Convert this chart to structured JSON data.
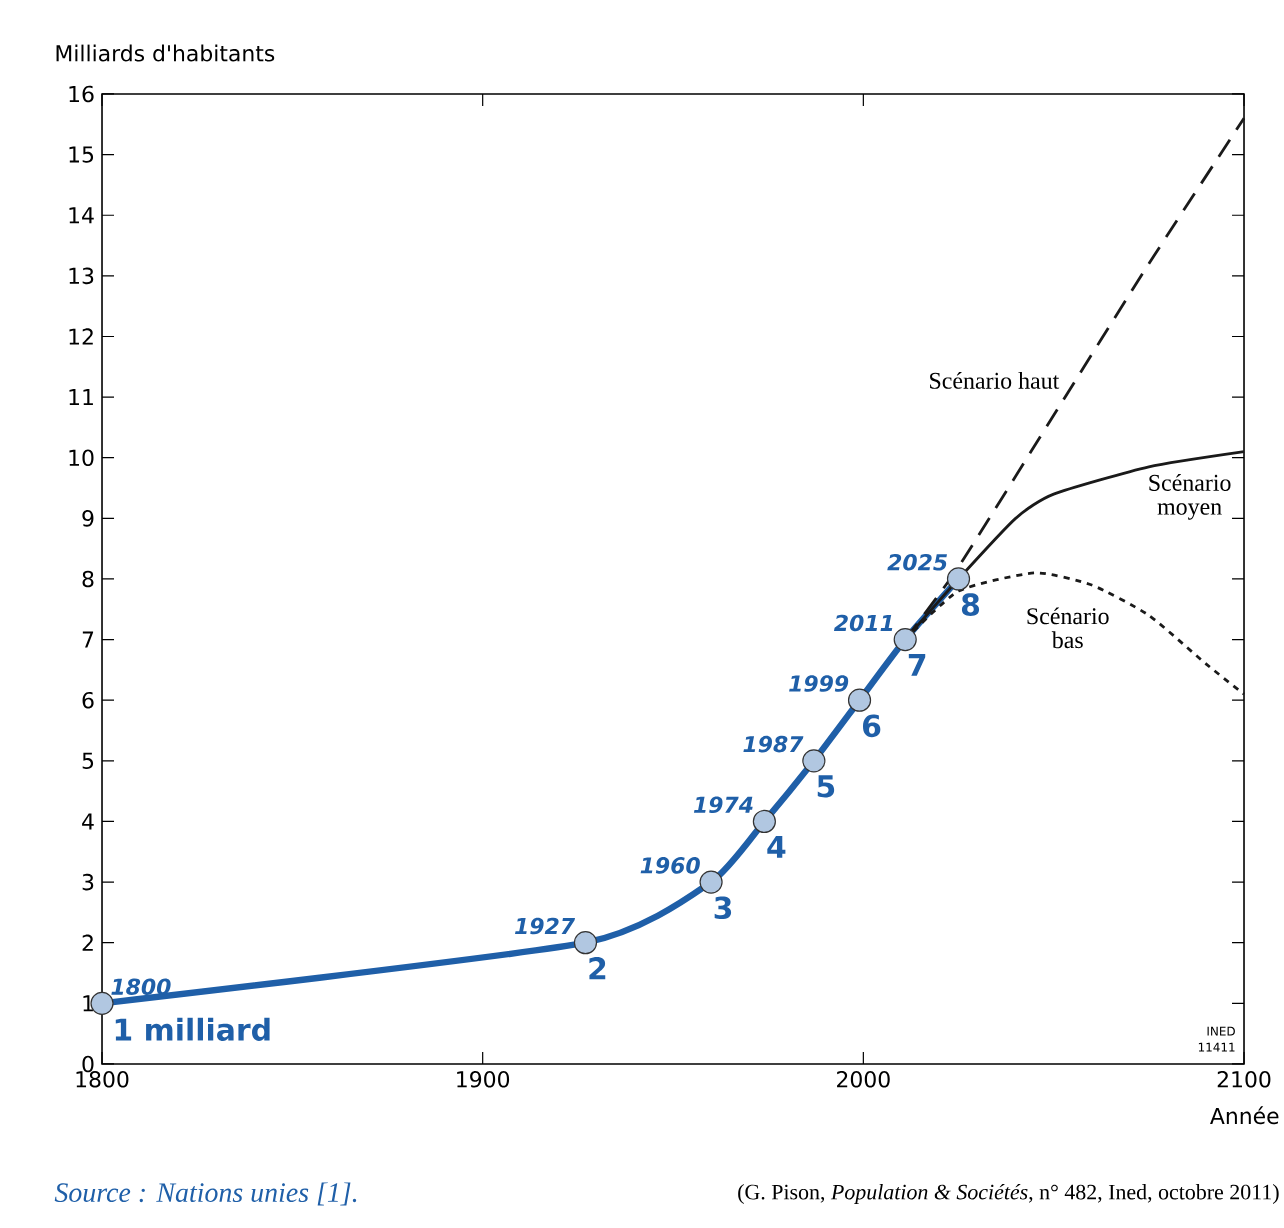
{
  "chart_data": {
    "type": "line",
    "ylabel": "Milliards d'habitants",
    "xlabel": "Année",
    "xlim": [
      1800,
      2100
    ],
    "xticks": [
      1800,
      1900,
      2000,
      2100
    ],
    "ylim": [
      0,
      16
    ],
    "yticks": [
      0,
      1,
      2,
      3,
      4,
      5,
      6,
      7,
      8,
      9,
      10,
      11,
      12,
      13,
      14,
      15,
      16
    ],
    "series": [
      {
        "color": "#1f5fa8",
        "marker": "circle",
        "line_style": "solid",
        "x": [
          1800,
          1927,
          1960,
          1974,
          1987,
          1999,
          2011,
          2025
        ],
        "values": [
          1,
          2,
          3,
          4,
          5,
          6,
          7,
          8
        ]
      },
      {
        "name": "Scénario haut",
        "color": "#1a1a1a",
        "marker": "none",
        "line_style": "dashed",
        "x": [
          2011,
          2025,
          2050,
          2075,
          2100
        ],
        "values": [
          7,
          8.2,
          10.7,
          13.2,
          15.6
        ]
      },
      {
        "name": "Scénario moyen",
        "color": "#1a1a1a",
        "marker": "none",
        "line_style": "solid",
        "x": [
          2011,
          2025,
          2040,
          2050,
          2075,
          2100
        ],
        "values": [
          7,
          8.0,
          9.0,
          9.4,
          9.85,
          10.1
        ]
      },
      {
        "name": "Scénario bas",
        "color": "#1a1a1a",
        "marker": "none",
        "line_style": "dotted",
        "x": [
          2011,
          2025,
          2045,
          2060,
          2075,
          2090,
          2100
        ],
        "values": [
          7,
          7.8,
          8.1,
          7.9,
          7.4,
          6.6,
          6.1
        ]
      }
    ],
    "annotations": [
      {
        "text": "1800",
        "x": 1800,
        "y": 1
      },
      {
        "text": "1 milliard",
        "x": 1800,
        "y": 1
      },
      {
        "text": "1927",
        "x": 1927,
        "y": 2
      },
      {
        "text": "2",
        "x": 1927,
        "y": 2
      },
      {
        "text": "1960",
        "x": 1960,
        "y": 3
      },
      {
        "text": "3",
        "x": 1960,
        "y": 3
      },
      {
        "text": "1974",
        "x": 1974,
        "y": 4
      },
      {
        "text": "4",
        "x": 1974,
        "y": 4
      },
      {
        "text": "1987",
        "x": 1987,
        "y": 5
      },
      {
        "text": "5",
        "x": 1987,
        "y": 5
      },
      {
        "text": "1999",
        "x": 1999,
        "y": 6
      },
      {
        "text": "6",
        "x": 1999,
        "y": 6
      },
      {
        "text": "2011",
        "x": 2011,
        "y": 7
      },
      {
        "text": "7",
        "x": 2011,
        "y": 7
      },
      {
        "text": "2025",
        "x": 2025,
        "y": 8
      },
      {
        "text": "8",
        "x": 2025,
        "y": 8
      },
      "INED",
      "11411",
      "Source : Nations unies [1].",
      "(G. Pison, *Population & Sociétés*, n° 482, Ined, octobre 2011)"
    ]
  }
}
